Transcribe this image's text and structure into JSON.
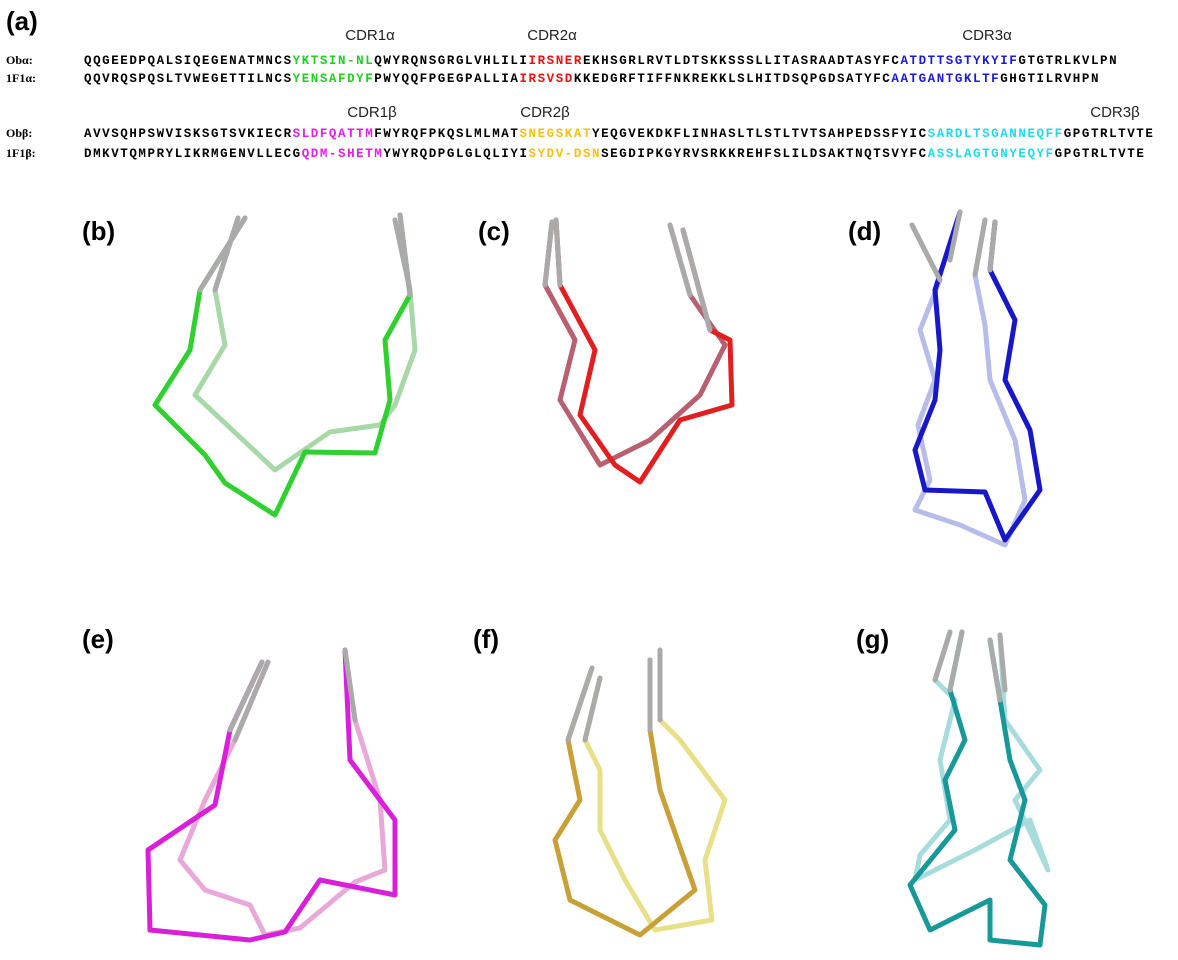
{
  "panel_a": {
    "label": "(a)",
    "cdr_alpha": [
      "CDR1α",
      "CDR2α",
      "CDR3α"
    ],
    "cdr_beta": [
      "CDR1β",
      "CDR2β",
      "CDR3β"
    ],
    "rows": [
      {
        "name": "Obα:",
        "segments": [
          {
            "text": "QQGEEDPQALSIQEGENATMNCS",
            "color": "#000"
          },
          {
            "text": "YKTSIN-NL",
            "color": "#22cc22"
          },
          {
            "text": "QWYRQNSGRGLVHLILI",
            "color": "#000"
          },
          {
            "text": "IRSNER",
            "color": "#ee1111"
          },
          {
            "text": "EKHSGRLRVTLDTSKKSSSLLITASRAADTASYFC",
            "color": "#000"
          },
          {
            "text": "ATDTTSGTYKYIF",
            "color": "#1a1ad8"
          },
          {
            "text": "GTGTRLKVLPN",
            "color": "#000"
          }
        ]
      },
      {
        "name": "1F1α:",
        "segments": [
          {
            "text": "QQVRQSPQSLTVWEGETTILNCS",
            "color": "#000"
          },
          {
            "text": "YENSAFDYF",
            "color": "#22cc22"
          },
          {
            "text": "PWYQQFPGEGPALLIA",
            "color": "#000"
          },
          {
            "text": "IRSVSD",
            "color": "#ee1111"
          },
          {
            "text": "KKEDGRFTIFFNKREKKLSLHITDSQPGDSATYFC",
            "color": "#000"
          },
          {
            "text": "AATGANTGKLTF",
            "color": "#1a1ad8"
          },
          {
            "text": "GHGTILRVHPN",
            "color": "#000"
          }
        ]
      },
      {
        "name": "Obβ:",
        "segments": [
          {
            "text": "AVVSQHPSWVISKSGTSVKIECR",
            "color": "#000"
          },
          {
            "text": "SLDFQATTM",
            "color": "#e020e0"
          },
          {
            "text": "FWYRQFPKQSLMLMAT",
            "color": "#000"
          },
          {
            "text": "SNEGSKAT",
            "color": "#f2c018"
          },
          {
            "text": "YEQGVEKDKFLINHASLTLSTLTVTSAHPEDSSFYIC",
            "color": "#000"
          },
          {
            "text": "SARDLTSGANNEQFF",
            "color": "#22d8e8"
          },
          {
            "text": "GPGTRLTVTE",
            "color": "#000"
          }
        ]
      },
      {
        "name": "1F1β:",
        "segments": [
          {
            "text": "DMKVTQMPRYLIKRMGENVLLECG",
            "color": "#000"
          },
          {
            "text": "QDM-SHETM",
            "color": "#e020e0"
          },
          {
            "text": "YWYRQDPGLGLQLIYI",
            "color": "#000"
          },
          {
            "text": "SYDV-DSN",
            "color": "#f2c018"
          },
          {
            "text": "SEGDIPKGYRVSRKKREHFSLILDSAKTNQTSVYFC",
            "color": "#000"
          },
          {
            "text": "ASSLAGTGNYEQYF",
            "color": "#22d8e8"
          },
          {
            "text": "GPGTRLTVTE",
            "color": "#000"
          }
        ]
      }
    ]
  },
  "panels": [
    "(b)",
    "(c)",
    "(d)",
    "(e)",
    "(f)",
    "(g)"
  ]
}
